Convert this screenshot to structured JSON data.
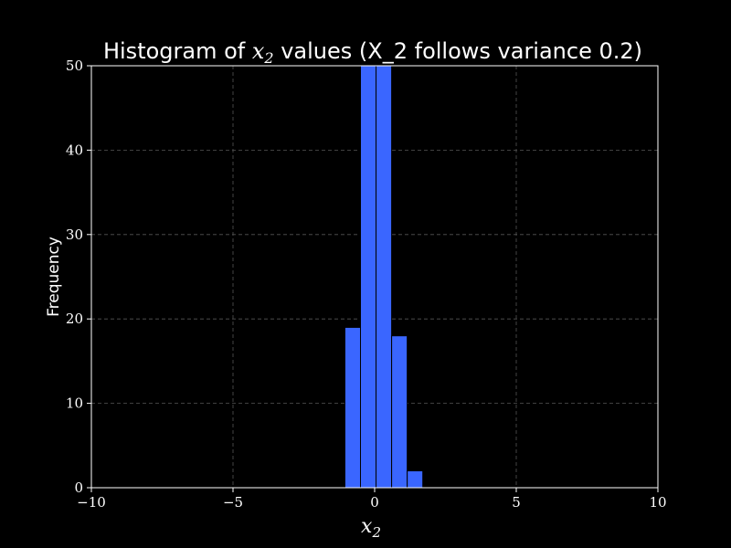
{
  "chart_data": {
    "type": "bar",
    "title": {
      "prefix": "Histogram of ",
      "math_var": "x",
      "math_sub": "2",
      "suffix": " values (X_2 follows variance 0.2)"
    },
    "xlabel": {
      "var": "x",
      "sub": "2"
    },
    "ylabel": "Frequency",
    "xlim": [
      -10,
      10
    ],
    "ylim": [
      0,
      50
    ],
    "xticks": [
      -10,
      -5,
      0,
      5,
      10
    ],
    "xtick_labels": [
      "−10",
      "−5",
      "0",
      "5",
      "10"
    ],
    "yticks": [
      0,
      10,
      20,
      30,
      40,
      50
    ],
    "ytick_labels": [
      "0",
      "10",
      "20",
      "30",
      "40",
      "50"
    ],
    "grid": true,
    "bin_edges": [
      -1.05,
      -0.5,
      0.05,
      0.6,
      1.15,
      1.7
    ],
    "bins": [
      {
        "x0": -1.05,
        "x1": -0.5,
        "value": 19
      },
      {
        "x0": -0.5,
        "x1": 0.05,
        "value": 50
      },
      {
        "x0": 0.05,
        "x1": 0.6,
        "value": 50
      },
      {
        "x0": 0.6,
        "x1": 1.15,
        "value": 18
      },
      {
        "x0": 1.15,
        "x1": 1.7,
        "value": 2
      }
    ],
    "colors": {
      "background": "#000000",
      "bar": "#3a66ff",
      "bar_edge": "#000000",
      "axes": "#ffffff",
      "grid": "#555555",
      "text": "#ffffff"
    }
  }
}
